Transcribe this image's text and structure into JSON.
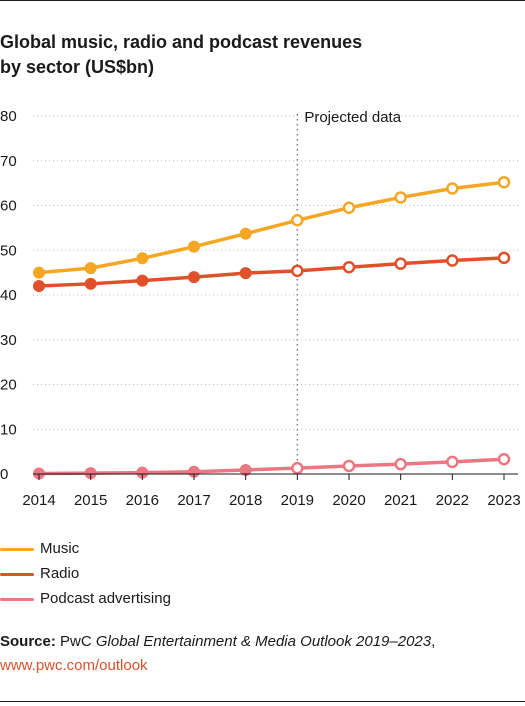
{
  "title_line1": "Global music, radio and podcast revenues",
  "title_line2": "by sector (US$bn)",
  "annotation": "Projected data",
  "source": {
    "label": "Source:",
    "publisher": "PwC",
    "publication": "Global Entertainment & Media Outlook 2019–2023",
    "trail": ",",
    "url": "www.pwc.com/outlook"
  },
  "colors": {
    "music": "#F5A623",
    "radio": "#E0502B",
    "podcast": "#EB7783",
    "axis": "#1a1a1a",
    "grid": "#bdbdbd",
    "divider": "#7f7f7f",
    "url": "#E0502B"
  },
  "chart_data": {
    "type": "line",
    "x": [
      "2014",
      "2015",
      "2016",
      "2017",
      "2018",
      "2019",
      "2020",
      "2021",
      "2022",
      "2023"
    ],
    "ylim": [
      0,
      80
    ],
    "yticks": [
      0,
      10,
      20,
      30,
      40,
      50,
      60,
      70,
      80
    ],
    "projected_from": "2019",
    "legend_position": "bottom-left",
    "series": [
      {
        "name": "Music",
        "color_key": "music",
        "values": [
          45,
          46,
          48.2,
          50.8,
          53.7,
          56.7,
          59.5,
          61.8,
          63.8,
          65.2
        ]
      },
      {
        "name": "Radio",
        "color_key": "radio",
        "values": [
          42,
          42.5,
          43.2,
          44,
          44.9,
          45.4,
          46.2,
          47,
          47.7,
          48.3
        ]
      },
      {
        "name": "Podcast advertising",
        "color_key": "podcast",
        "values": [
          0.1,
          0.2,
          0.3,
          0.5,
          0.9,
          1.3,
          1.8,
          2.2,
          2.7,
          3.3
        ]
      }
    ]
  }
}
